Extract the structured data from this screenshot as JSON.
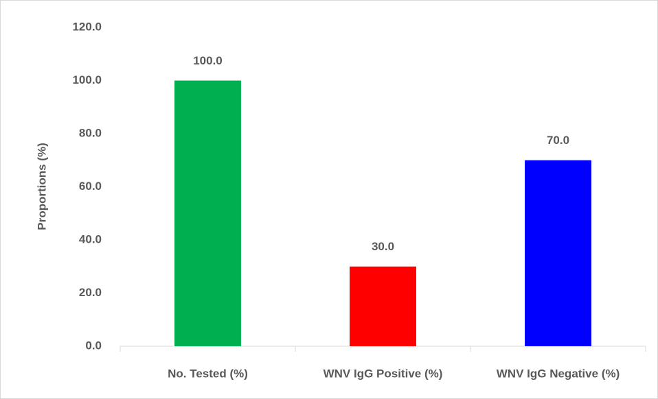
{
  "chart_data": {
    "type": "bar",
    "categories": [
      "No. Tested (%)",
      "WNV IgG Positive (%)",
      "WNV IgG Negative (%)"
    ],
    "values": [
      100,
      30,
      70
    ],
    "value_labels": [
      "100.0",
      "30.0",
      "70.0"
    ],
    "colors": [
      "#00b050",
      "#ff0000",
      "#0000ff"
    ],
    "ylabel": "Proportions (%)",
    "ylim": [
      0,
      120
    ],
    "yticks": [
      {
        "value": 0,
        "label": "0.0"
      },
      {
        "value": 20,
        "label": "20.0"
      },
      {
        "value": 40,
        "label": "40.0"
      },
      {
        "value": 60,
        "label": "60.0"
      },
      {
        "value": 80,
        "label": "80.0"
      },
      {
        "value": 100,
        "label": "100.0"
      },
      {
        "value": 120,
        "label": "120.0"
      }
    ],
    "grid": false
  }
}
